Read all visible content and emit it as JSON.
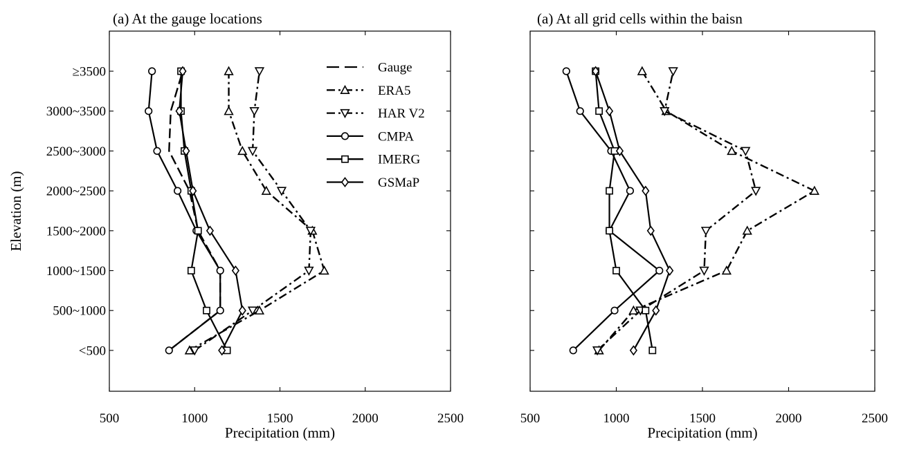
{
  "chart_data": [
    {
      "type": "line",
      "title": "(a) At the gauge locations",
      "xlabel": "Precipitation (mm)",
      "ylabel": "Elevation (m)",
      "xlim": [
        500,
        2500
      ],
      "xticks": [
        500,
        1000,
        1500,
        2000,
        2500
      ],
      "categories": [
        "<500",
        "500~1000",
        "1000~1500",
        "1500~2000",
        "2000~2500",
        "2500~3000",
        "3000~3500",
        "≥3500"
      ],
      "legend": "top-right",
      "grid": false,
      "series": [
        {
          "name": "Gauge",
          "style": "dashed",
          "marker": "none",
          "values": [
            850,
            1150,
            1150,
            1020,
            970,
            850,
            860,
            930
          ]
        },
        {
          "name": "ERA5",
          "style": "dashdot",
          "marker": "triangle-up",
          "values": [
            970,
            1380,
            1760,
            1690,
            1420,
            1280,
            1200,
            1200
          ]
        },
        {
          "name": "HAR V2",
          "style": "dashdot",
          "marker": "triangle-down",
          "values": [
            1000,
            1340,
            1670,
            1680,
            1510,
            1340,
            1350,
            1380
          ]
        },
        {
          "name": "CMPA",
          "style": "solid",
          "marker": "circle",
          "values": [
            850,
            1150,
            1150,
            1010,
            900,
            780,
            730,
            750
          ]
        },
        {
          "name": "IMERG",
          "style": "solid",
          "marker": "square",
          "values": [
            1190,
            1070,
            980,
            1020,
            980,
            940,
            920,
            920
          ]
        },
        {
          "name": "GSMaP",
          "style": "solid",
          "marker": "diamond",
          "values": [
            1160,
            1280,
            1240,
            1090,
            990,
            950,
            910,
            930
          ]
        }
      ]
    },
    {
      "type": "line",
      "title": "(a) At all grid cells within the baisn",
      "xlabel": "Precipitation (mm)",
      "ylabel": "",
      "xlim": [
        500,
        2500
      ],
      "xticks": [
        500,
        1000,
        1500,
        2000,
        2500
      ],
      "categories": [
        "<500",
        "500~1000",
        "1000~1500",
        "1500~2000",
        "2000~2500",
        "2500~3000",
        "3000~3500",
        "≥3500"
      ],
      "grid": false,
      "series": [
        {
          "name": "ERA5",
          "style": "dashdot",
          "marker": "triangle-up",
          "values": [
            900,
            1100,
            1640,
            1760,
            2150,
            1670,
            1290,
            1150
          ]
        },
        {
          "name": "HAR V2",
          "style": "dashdot",
          "marker": "triangle-down",
          "values": [
            890,
            1140,
            1510,
            1520,
            1810,
            1750,
            1280,
            1330
          ]
        },
        {
          "name": "CMPA",
          "style": "solid",
          "marker": "circle",
          "values": [
            750,
            990,
            1250,
            960,
            1080,
            970,
            790,
            710
          ]
        },
        {
          "name": "IMERG",
          "style": "solid",
          "marker": "square",
          "values": [
            1210,
            1170,
            1000,
            960,
            960,
            990,
            900,
            880
          ]
        },
        {
          "name": "GSMaP",
          "style": "solid",
          "marker": "diamond",
          "values": [
            1100,
            1230,
            1310,
            1200,
            1170,
            1020,
            960,
            880
          ]
        }
      ]
    }
  ]
}
